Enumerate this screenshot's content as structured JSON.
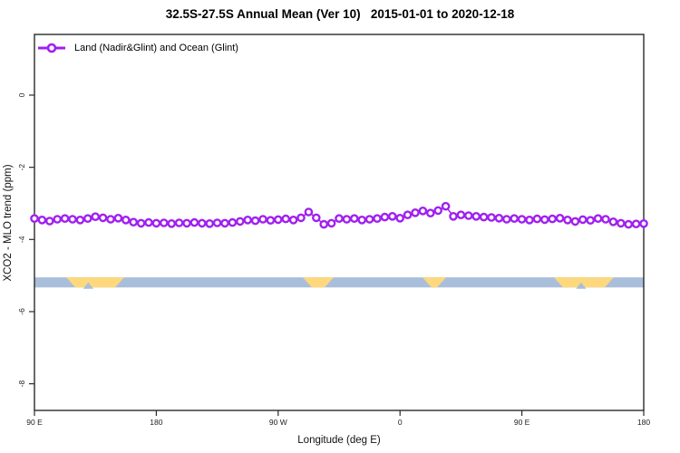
{
  "title": "32.5S-27.5S Annual Mean (Ver 10)   2015-01-01 to 2020-12-18",
  "legend": {
    "label": "Land (Nadir&Glint) and Ocean (Glint)",
    "marker": "open-circle-on-line",
    "color": "#A020F0"
  },
  "axes": {
    "x_ticks": [
      {
        "value": 90,
        "label": "90 E"
      },
      {
        "value": 180,
        "label": "180"
      },
      {
        "value": 270,
        "label": "90 W"
      },
      {
        "value": 360,
        "label": "0"
      },
      {
        "value": 450,
        "label": "90 E"
      },
      {
        "value": 540,
        "label": "180"
      }
    ],
    "y_ticks": [
      {
        "value": 0,
        "label": "0"
      },
      {
        "value": -2,
        "label": "-2"
      },
      {
        "value": -4,
        "label": "-4"
      },
      {
        "value": -6,
        "label": "-6"
      },
      {
        "value": -8,
        "label": "-8"
      }
    ]
  },
  "chart_data": {
    "type": "line",
    "title": "32.5S-27.5S Annual Mean (Ver 10)   2015-01-01 to 2020-12-18",
    "xlabel": "Longitude (deg E)",
    "ylabel": "XCO2 - MLO trend (ppm)",
    "xlim": [
      90,
      540
    ],
    "ylim": [
      -8.8,
      1.6
    ],
    "grid": false,
    "legend_position": "top-left-inside",
    "series": [
      {
        "name": "Land (Nadir&Glint) and Ocean (Glint)",
        "color": "#A020F0",
        "marker": "open-circle",
        "x_start": 90,
        "x_step": 5.625,
        "values": [
          -3.42,
          -3.46,
          -3.49,
          -3.44,
          -3.42,
          -3.44,
          -3.46,
          -3.42,
          -3.37,
          -3.4,
          -3.44,
          -3.41,
          -3.46,
          -3.52,
          -3.55,
          -3.53,
          -3.55,
          -3.54,
          -3.56,
          -3.54,
          -3.55,
          -3.53,
          -3.55,
          -3.56,
          -3.54,
          -3.55,
          -3.53,
          -3.5,
          -3.46,
          -3.48,
          -3.44,
          -3.47,
          -3.45,
          -3.43,
          -3.46,
          -3.4,
          -3.24,
          -3.4,
          -3.58,
          -3.55,
          -3.42,
          -3.44,
          -3.42,
          -3.46,
          -3.44,
          -3.42,
          -3.38,
          -3.36,
          -3.41,
          -3.32,
          -3.26,
          -3.21,
          -3.27,
          -3.2,
          -3.08,
          -3.36,
          -3.32,
          -3.34,
          -3.36,
          -3.38,
          -3.39,
          -3.41,
          -3.44,
          -3.42,
          -3.44,
          -3.46,
          -3.43,
          -3.45,
          -3.43,
          -3.41,
          -3.46,
          -3.5,
          -3.45,
          -3.47,
          -3.42,
          -3.44,
          -3.51,
          -3.55,
          -3.58,
          -3.57,
          -3.56
        ]
      }
    ],
    "surface_band": {
      "description": "land/ocean indicator strip along longitude",
      "ocean_color": "#a9bedb",
      "land_color": "#fdd87d",
      "y_top_ppm": -5.05,
      "y_bottom_ppm": -5.33,
      "range_deg": [
        90,
        540
      ],
      "land_segments_deg": [
        [
          113.5,
          156.3
        ],
        [
          288.2,
          311.0
        ],
        [
          376.6,
          394.0
        ],
        [
          473.7,
          517.9
        ]
      ],
      "water_notches_deg": [
        [
          126.0,
          133.5
        ],
        [
          490.0,
          497.5
        ]
      ]
    }
  }
}
